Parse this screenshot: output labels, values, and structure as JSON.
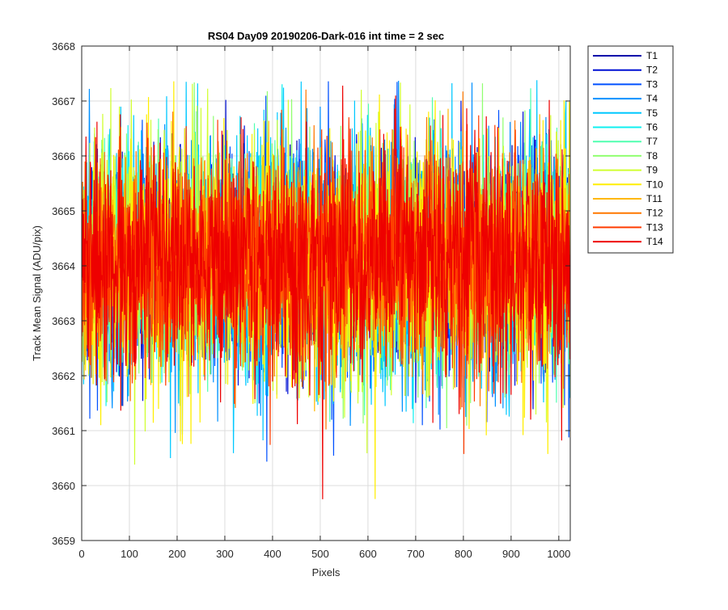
{
  "chart_data": {
    "type": "line",
    "title": "RS04 Day09 20190206-Dark-016 int time = 2 sec",
    "xlabel": "Pixels",
    "ylabel": "Track Mean Signal (ADU/pix)",
    "xlim": [
      0,
      1024
    ],
    "ylim": [
      3659,
      3668
    ],
    "xticks": [
      0,
      100,
      200,
      300,
      400,
      500,
      600,
      700,
      800,
      900,
      1000
    ],
    "xtick_labels": [
      "0",
      "100",
      "200",
      "300",
      "400",
      "500",
      "600",
      "700",
      "800",
      "900",
      "1000"
    ],
    "yticks": [
      3659,
      3660,
      3661,
      3662,
      3663,
      3664,
      3665,
      3666,
      3667,
      3668
    ],
    "ytick_labels": [
      "3659",
      "3660",
      "3661",
      "3662",
      "3663",
      "3664",
      "3665",
      "3666",
      "3667",
      "3668"
    ],
    "grid": true,
    "legend_position": "outside-top-right",
    "noise": {
      "n_points": 1024,
      "mean": 3664.1,
      "typical_range": [
        3661.5,
        3666.6
      ],
      "min": 3659.7,
      "max": 3667.4
    },
    "series": [
      {
        "name": "T1",
        "color": "#0000aa"
      },
      {
        "name": "T2",
        "color": "#0010d4"
      },
      {
        "name": "T3",
        "color": "#0050ff"
      },
      {
        "name": "T4",
        "color": "#0090ff"
      },
      {
        "name": "T5",
        "color": "#00c8ff"
      },
      {
        "name": "T6",
        "color": "#10f0f0"
      },
      {
        "name": "T7",
        "color": "#50ffb0"
      },
      {
        "name": "T8",
        "color": "#90ff70"
      },
      {
        "name": "T9",
        "color": "#d0ff30"
      },
      {
        "name": "T10",
        "color": "#ffee00"
      },
      {
        "name": "T11",
        "color": "#ffb800"
      },
      {
        "name": "T12",
        "color": "#ff7800"
      },
      {
        "name": "T13",
        "color": "#ff3c00"
      },
      {
        "name": "T14",
        "color": "#ee0000"
      }
    ]
  }
}
